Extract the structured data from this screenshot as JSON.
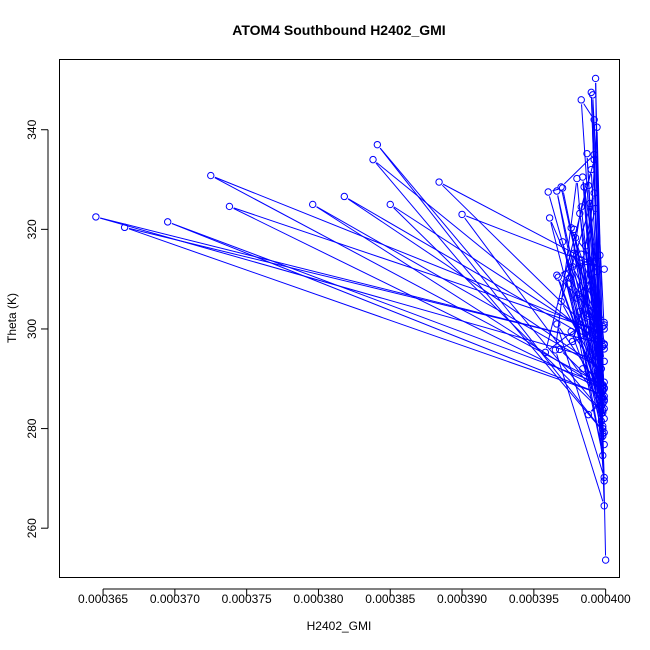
{
  "chart_data": {
    "type": "line",
    "title": "ATOM4 Southbound H2402_GMI",
    "xlabel": "H2402_GMI",
    "ylabel": "Theta (K)",
    "xlim": [
      0.000362,
      0.000401
    ],
    "ylim": [
      250,
      354
    ],
    "xticks": [
      "0.000365",
      "0.000370",
      "0.000375",
      "0.000380",
      "0.000385",
      "0.000390",
      "0.000395",
      "0.000400"
    ],
    "xtick_values": [
      0.000365,
      0.00037,
      0.000375,
      0.00038,
      0.000385,
      0.00039,
      0.000395,
      0.0004
    ],
    "yticks": [
      "260",
      "280",
      "300",
      "320",
      "340"
    ],
    "ytick_values": [
      260,
      280,
      300,
      320,
      340
    ],
    "grid": false,
    "series": [
      {
        "color": "#0000ff",
        "style": "both",
        "points": [
          [
            0.0004,
            253.6
          ],
          [
            0.0003993,
            350.3
          ],
          [
            0.0003996,
            290.0
          ],
          [
            0.0003999,
            264.5
          ],
          [
            0.0003965,
            295.8
          ],
          [
            0.000398,
            330.2
          ],
          [
            0.0003999,
            269.5
          ],
          [
            0.000399,
            347.5
          ],
          [
            0.0003998,
            279.0
          ],
          [
            0.0003987,
            335.2
          ],
          [
            0.0003999,
            276.8
          ],
          [
            0.0003983,
            346.0
          ],
          [
            0.0003992,
            342.0
          ],
          [
            0.0003999,
            284.0
          ],
          [
            0.0003994,
            340.5
          ],
          [
            0.0003985,
            301.2
          ],
          [
            0.0003958,
            295.3
          ],
          [
            0.0003992,
            334.0
          ],
          [
            0.0003996,
            286.8
          ],
          [
            0.0003991,
            347.0
          ],
          [
            0.0003999,
            300.0
          ],
          [
            0.0003978,
            315.2
          ],
          [
            0.0003998,
            286.0
          ],
          [
            0.000399,
            332.0
          ],
          [
            0.0003982,
            323.2
          ],
          [
            0.0003999,
            289.3
          ],
          [
            0.0003986,
            316.7
          ],
          [
            0.0003993,
            324.2
          ],
          [
            0.0003998,
            288.5
          ],
          [
            0.000397,
            328.3
          ],
          [
            0.000396,
            327.5
          ],
          [
            0.0003987,
            300.0
          ],
          [
            0.0003966,
            327.7
          ],
          [
            0.0003997,
            281.5
          ],
          [
            0.0003961,
            322.3
          ],
          [
            0.0003999,
            296.8
          ],
          [
            0.0003989,
            325.2
          ],
          [
            0.0003994,
            303.7
          ],
          [
            0.0003999,
            288.0
          ],
          [
            0.0003979,
            318.3
          ],
          [
            0.0003992,
            313.5
          ],
          [
            0.0003998,
            280.5
          ],
          [
            0.000397,
            317.5
          ],
          [
            0.0003997,
            286.2
          ],
          [
            0.0003967,
            310.4
          ],
          [
            0.0003999,
            301.3
          ],
          [
            0.0003976,
            320.3
          ],
          [
            0.0003998,
            278.5
          ],
          [
            0.0003974,
            309.0
          ],
          [
            0.0003999,
            285.5
          ],
          [
            0.000398,
            306.2
          ],
          [
            0.0003992,
            327.3
          ],
          [
            0.0003969,
            305.5
          ],
          [
            0.0003995,
            291.5
          ],
          [
            0.0003976,
            299.5
          ],
          [
            0.0003997,
            283.0
          ],
          [
            0.0003985,
            328.5
          ],
          [
            0.0003999,
            282.0
          ],
          [
            0.0003983,
            324.5
          ],
          [
            0.0003975,
            310.3
          ],
          [
            0.0003998,
            274.6
          ],
          [
            0.0003972,
            311.0
          ],
          [
            0.0003999,
            300.8
          ],
          [
            0.0003968,
            295.9
          ],
          [
            0.0003998,
            287.5
          ],
          [
            0.0003966,
            301.0
          ],
          [
            0.0003999,
            270.2
          ],
          [
            0.0003984,
            330.5
          ],
          [
            0.0003994,
            311.5
          ],
          [
            0.0003981,
            307.0
          ],
          [
            0.0003999,
            296.0
          ],
          [
            0.0003988,
            302.5
          ],
          [
            0.0003997,
            284.5
          ],
          [
            0.0003989,
            313.5
          ],
          [
            0.0003999,
            293.5
          ],
          [
            0.0003645,
            322.5
          ],
          [
            0.0003999,
            297.0
          ],
          [
            0.0003665,
            320.4
          ],
          [
            0.0003996,
            287.0
          ],
          [
            0.0003695,
            321.5
          ],
          [
            0.0003998,
            288.8
          ],
          [
            0.0003725,
            330.8
          ],
          [
            0.0003996,
            299.5
          ],
          [
            0.0003738,
            324.6
          ],
          [
            0.0003998,
            287.8
          ],
          [
            0.0003796,
            325.0
          ],
          [
            0.0003997,
            292.0
          ],
          [
            0.0003818,
            326.6
          ],
          [
            0.0003998,
            296.5
          ],
          [
            0.0003838,
            334.0
          ],
          [
            0.0003999,
            279.2
          ],
          [
            0.0003841,
            337.0
          ],
          [
            0.0003998,
            283.2
          ],
          [
            0.000385,
            325.0
          ],
          [
            0.0003997,
            297.5
          ],
          [
            0.0003884,
            329.5
          ],
          [
            0.0003999,
            312.0
          ],
          [
            0.00039,
            323.0
          ],
          [
            0.0003998,
            285.0
          ],
          [
            0.0003966,
            310.8
          ],
          [
            0.0003996,
            314.8
          ],
          [
            0.0003977,
            297.5
          ],
          [
            0.0003992,
            313.2
          ],
          [
            0.0003977,
            312.5
          ],
          [
            0.0003998,
            300.5
          ],
          [
            0.0003982,
            303.5
          ],
          [
            0.0003996,
            290.5
          ],
          [
            0.0003984,
            292.0
          ],
          [
            0.0003999,
            286.5
          ],
          [
            0.0003988,
            328.8
          ],
          [
            0.0003998,
            283.7
          ],
          [
            0.0003983,
            315.0
          ],
          [
            0.0003999,
            288.2
          ],
          [
            0.0003969,
            328.5
          ],
          [
            0.0003992,
            335.0
          ],
          [
            0.0003998,
            280.0
          ],
          [
            0.0003978,
            320.0
          ],
          [
            0.0003999,
            285.8
          ],
          [
            0.0003988,
            282.8
          ],
          [
            0.0003998,
            286.3
          ]
        ]
      }
    ]
  }
}
